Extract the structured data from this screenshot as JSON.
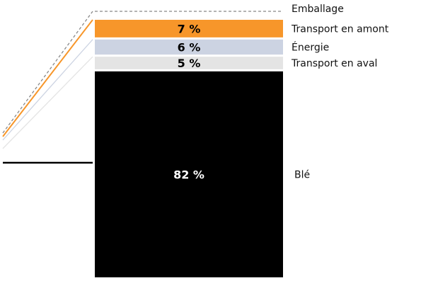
{
  "chart_data": {
    "type": "bar",
    "stacked": true,
    "unit": "%",
    "categories": [
      "Blé",
      "Transport en aval",
      "Énergie",
      "Transport en amont",
      "Emballage"
    ],
    "values": [
      82,
      5,
      6,
      7,
      0
    ],
    "labels": [
      "82 %",
      "5 %",
      "6 %",
      "7 %",
      ""
    ],
    "colors": {
      "Blé": "#000000",
      "Transport en aval": "#e4e4e4",
      "Énergie": "#ccd3e2",
      "Transport en amont": "#f7962a",
      "Emballage": "#888888"
    },
    "label_colors": {
      "Blé": "#ffffff",
      "Transport en aval": "#000000",
      "Énergie": "#000000",
      "Transport en amont": "#000000",
      "Emballage": "#000000"
    },
    "legend_position": "right",
    "grid": false
  }
}
